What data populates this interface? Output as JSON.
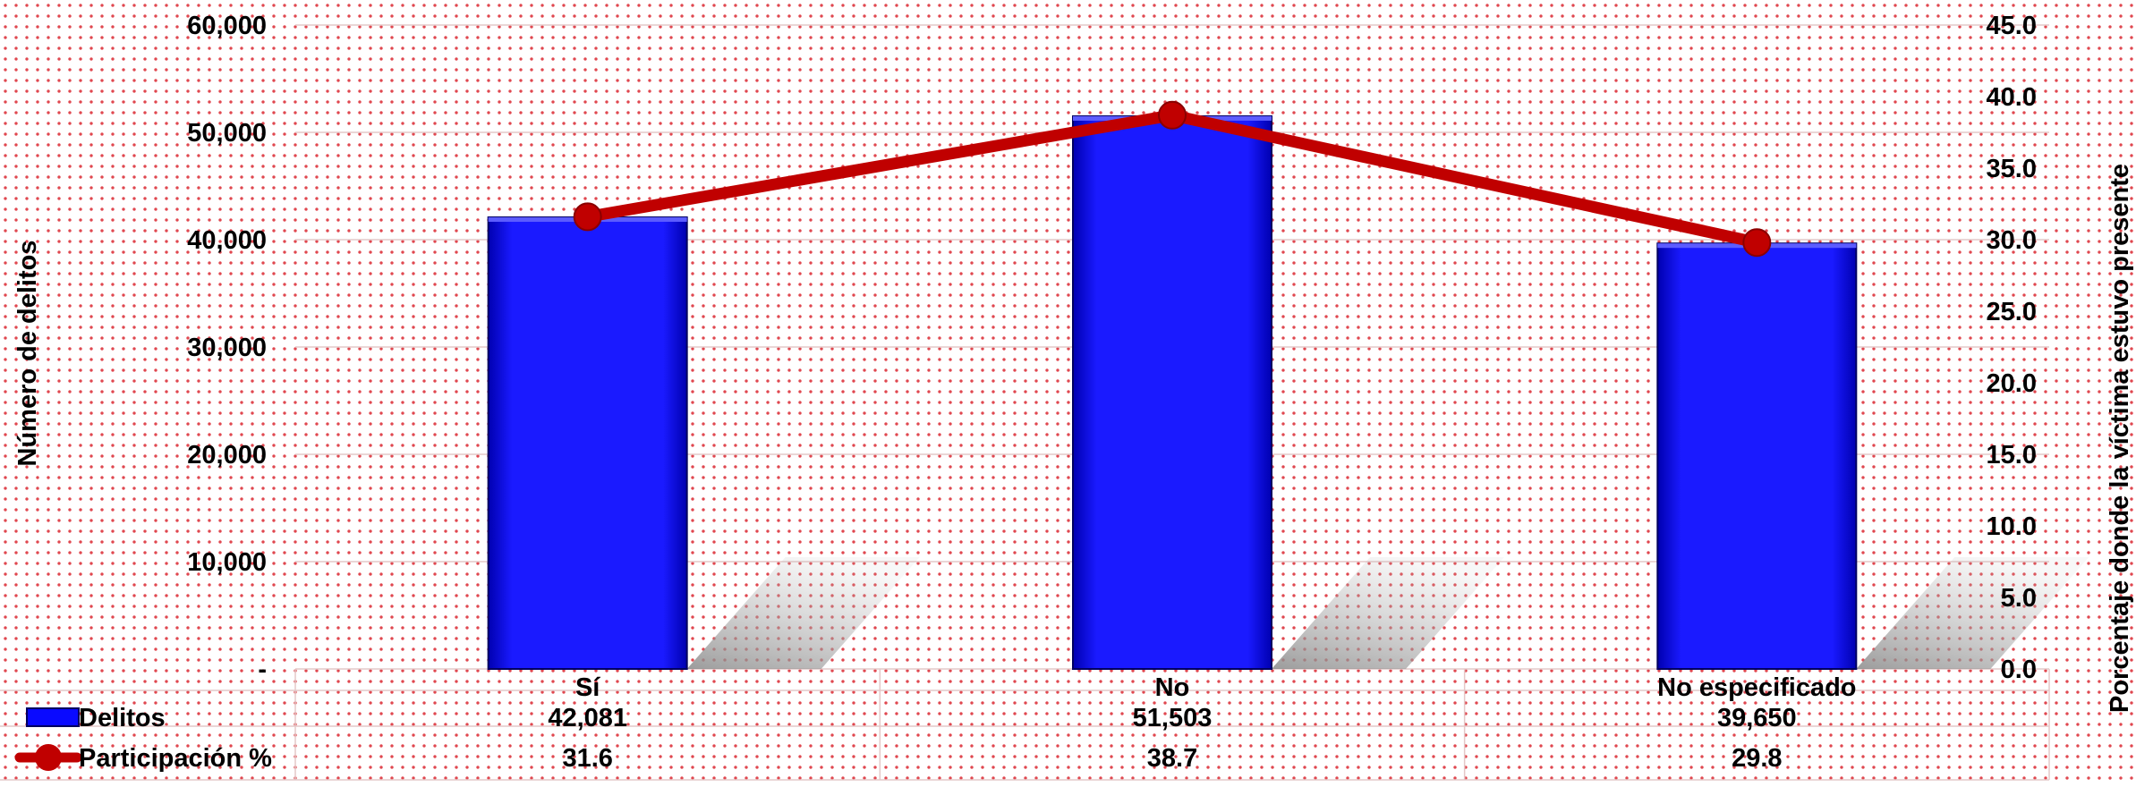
{
  "chart_data": {
    "type": "bar",
    "categories": [
      "Sí",
      "No",
      "No especificado"
    ],
    "series": [
      {
        "name": "Delitos",
        "type": "bar",
        "axis": "left",
        "color": "#0a0aff",
        "values": [
          42081,
          51503,
          39650
        ],
        "labels": [
          "42,081",
          "51,503",
          "39,650"
        ]
      },
      {
        "name": "Participación %",
        "type": "line",
        "axis": "right",
        "color": "#c00000",
        "values": [
          31.6,
          38.7,
          29.8
        ],
        "labels": [
          "31.6",
          "38.7",
          "29.8"
        ]
      }
    ],
    "ylabel": "Número de delitos",
    "y2label": "Porcentaje donde la víctima estuvo presente",
    "ylim": [
      0,
      60000
    ],
    "y2lim": [
      0,
      45
    ],
    "yticks": [
      "-",
      "10,000",
      "20,000",
      "30,000",
      "40,000",
      "50,000",
      "60,000"
    ],
    "y2ticks": [
      "0.0",
      "5.0",
      "10.0",
      "15.0",
      "20.0",
      "25.0",
      "30.0",
      "35.0",
      "40.0",
      "45.0"
    ],
    "grid": true,
    "legend": "data-table"
  }
}
